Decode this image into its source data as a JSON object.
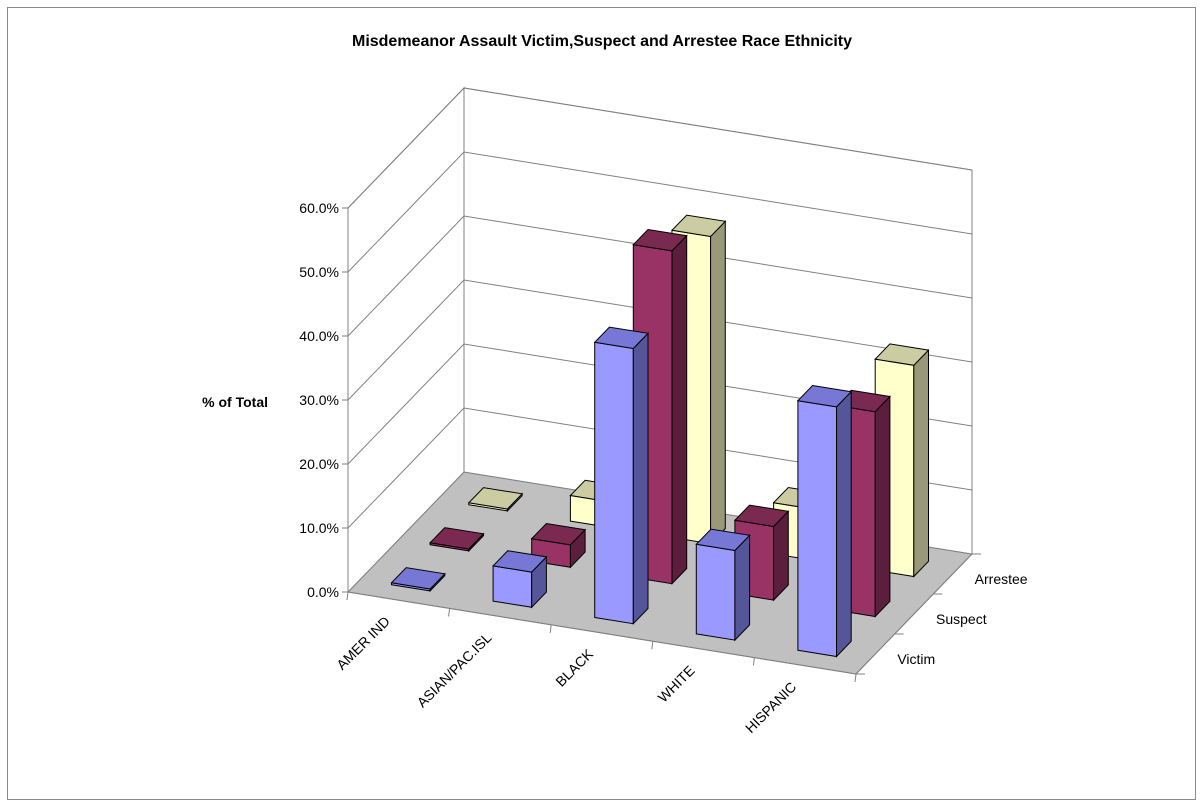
{
  "chart_data": {
    "type": "bar",
    "title": "Misdemeanor Assault Victim,Suspect and Arrestee Race Ethnicity",
    "ylabel": "% of Total",
    "xlabel": "",
    "ylim": [
      0,
      60
    ],
    "yticks": [
      "0.0%",
      "10.0%",
      "20.0%",
      "30.0%",
      "40.0%",
      "50.0%",
      "60.0%"
    ],
    "categories": [
      "AMER IND",
      "ASIAN/PAC.ISL",
      "BLACK",
      "WHITE",
      "HISPANIC"
    ],
    "series": [
      {
        "name": "Victim",
        "values": [
          0.3,
          5.5,
          43.0,
          14.0,
          39.0
        ]
      },
      {
        "name": "Suspect",
        "values": [
          0.3,
          3.5,
          52.0,
          11.5,
          32.0
        ]
      },
      {
        "name": "Arrestee",
        "values": [
          0.3,
          4.0,
          48.0,
          8.0,
          33.0
        ]
      }
    ],
    "grid": true,
    "colors": {
      "victim_front": "#9999ff",
      "victim_top": "#7777d6",
      "victim_side": "#555599",
      "suspect_front": "#993366",
      "suspect_top": "#7a2951",
      "suspect_side": "#5c1e3d",
      "arrestee_front": "#ffffcc",
      "arrestee_top": "#cccca3",
      "arrestee_side": "#99997a",
      "floor": "#c0c0c0",
      "walls": "#ffffff",
      "gridline": "#808080"
    }
  }
}
